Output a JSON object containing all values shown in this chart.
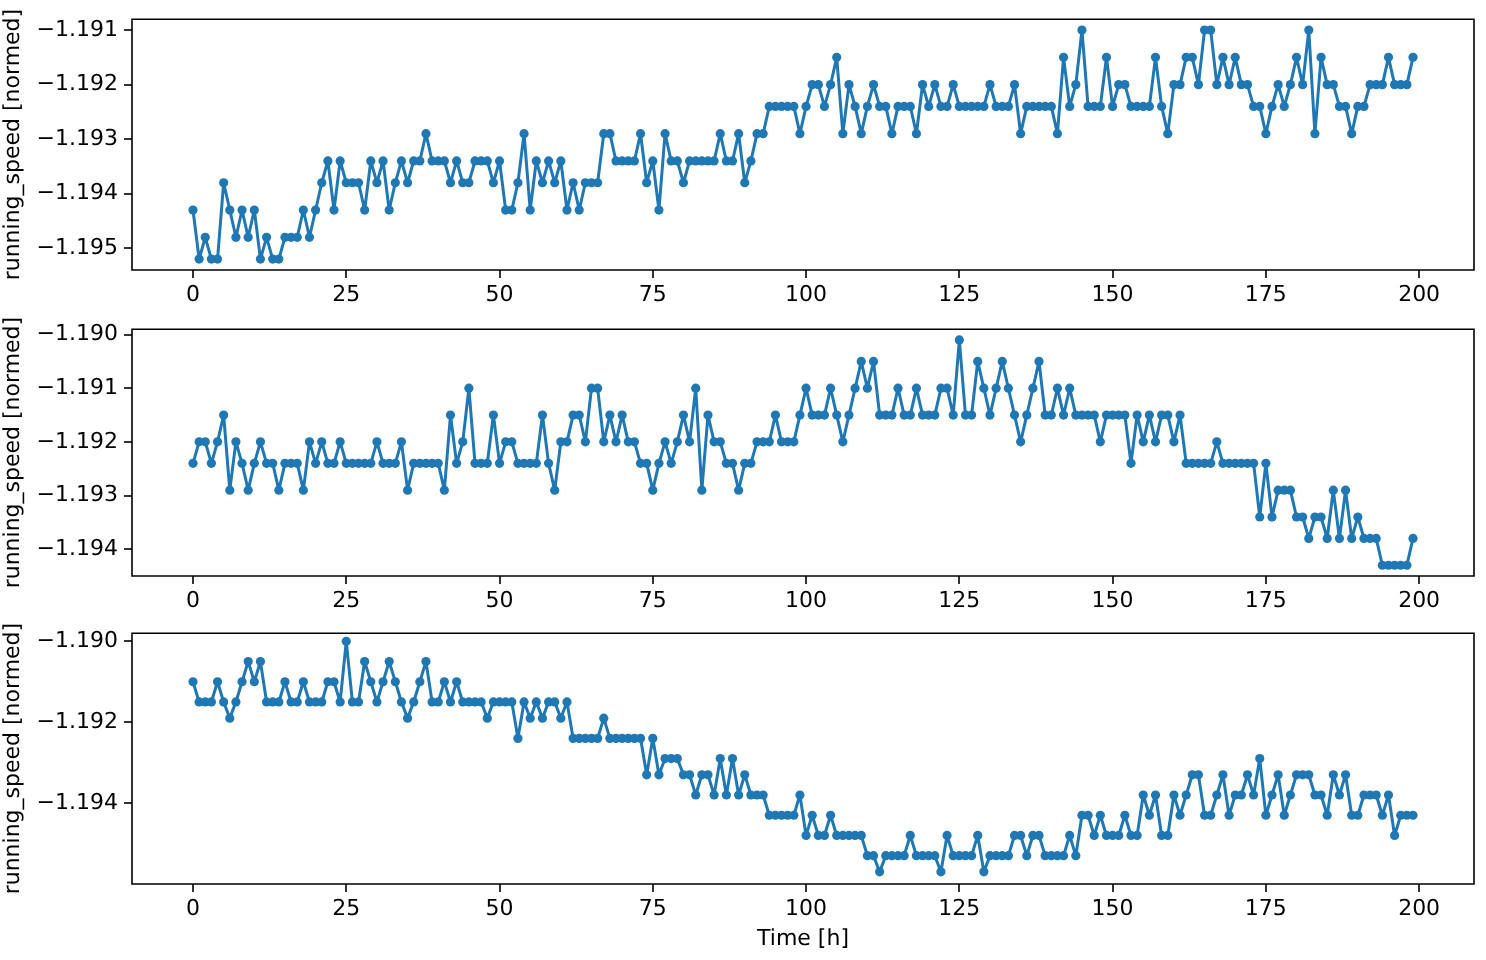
{
  "chart_data": [
    {
      "type": "line",
      "ylabel": "running_speed [normed]",
      "marker": "circle",
      "line_style": "solid",
      "xlim": [
        -9.95,
        208.95
      ],
      "xticks": [
        0,
        25,
        50,
        75,
        100,
        125,
        150,
        175,
        200
      ],
      "ylim": [
        -1.1954,
        -1.1908
      ],
      "yticks": [
        {
          "value": -1.195,
          "label": "−1.195"
        },
        {
          "value": -1.194,
          "label": "−1.194"
        },
        {
          "value": -1.193,
          "label": "−1.193"
        },
        {
          "value": -1.192,
          "label": "−1.192"
        },
        {
          "value": -1.191,
          "label": "−1.191"
        }
      ],
      "x": [
        0,
        1,
        2,
        3,
        4,
        5,
        6,
        7,
        8,
        9,
        10,
        11,
        12,
        13,
        14,
        15,
        16,
        17,
        18,
        19,
        20,
        21,
        22,
        23,
        24,
        25,
        26,
        27,
        28,
        29,
        30,
        31,
        32,
        33,
        34,
        35,
        36,
        37,
        38,
        39,
        40,
        41,
        42,
        43,
        44,
        45,
        46,
        47,
        48,
        49,
        50,
        51,
        52,
        53,
        54,
        55,
        56,
        57,
        58,
        59,
        60,
        61,
        62,
        63,
        64,
        65,
        66,
        67,
        68,
        69,
        70,
        71,
        72,
        73,
        74,
        75,
        76,
        77,
        78,
        79,
        80,
        81,
        82,
        83,
        84,
        85,
        86,
        87,
        88,
        89,
        90,
        91,
        92,
        93,
        94,
        95,
        96,
        97,
        98,
        99,
        100,
        101,
        102,
        103,
        104,
        105,
        106,
        107,
        108,
        109,
        110,
        111,
        112,
        113,
        114,
        115,
        116,
        117,
        118,
        119,
        120,
        121,
        122,
        123,
        124,
        125,
        126,
        127,
        128,
        129,
        130,
        131,
        132,
        133,
        134,
        135,
        136,
        137,
        138,
        139,
        140,
        141,
        142,
        143,
        144,
        145,
        146,
        147,
        148,
        149,
        150,
        151,
        152,
        153,
        154,
        155,
        156,
        157,
        158,
        159,
        160,
        161,
        162,
        163,
        164,
        165,
        166,
        167,
        168,
        169,
        170,
        171,
        172,
        173,
        174,
        175,
        176,
        177,
        178,
        179,
        180,
        181,
        182,
        183,
        184,
        185,
        186,
        187,
        188,
        189,
        190,
        191,
        192,
        193,
        194,
        195,
        196,
        197,
        198,
        199
      ],
      "series": [
        {
          "color": "#1f77b4",
          "values": [
            -1.1943,
            -1.1952,
            -1.1948,
            -1.1952,
            -1.1952,
            -1.1938,
            -1.1943,
            -1.1948,
            -1.1943,
            -1.1948,
            -1.1943,
            -1.1952,
            -1.1948,
            -1.1952,
            -1.1952,
            -1.1948,
            -1.1948,
            -1.1948,
            -1.1943,
            -1.1948,
            -1.1943,
            -1.1938,
            -1.1934,
            -1.1943,
            -1.1934,
            -1.1938,
            -1.1938,
            -1.1938,
            -1.1943,
            -1.1934,
            -1.1938,
            -1.1934,
            -1.1943,
            -1.1938,
            -1.1934,
            -1.1938,
            -1.1934,
            -1.1934,
            -1.1929,
            -1.1934,
            -1.1934,
            -1.1934,
            -1.1938,
            -1.1934,
            -1.1938,
            -1.1938,
            -1.1934,
            -1.1934,
            -1.1934,
            -1.1938,
            -1.1934,
            -1.1943,
            -1.1943,
            -1.1938,
            -1.1929,
            -1.1943,
            -1.1934,
            -1.1938,
            -1.1934,
            -1.1938,
            -1.1934,
            -1.1943,
            -1.1938,
            -1.1943,
            -1.1938,
            -1.1938,
            -1.1938,
            -1.1929,
            -1.1929,
            -1.1934,
            -1.1934,
            -1.1934,
            -1.1934,
            -1.1929,
            -1.1938,
            -1.1934,
            -1.1943,
            -1.1929,
            -1.1934,
            -1.1934,
            -1.1938,
            -1.1934,
            -1.1934,
            -1.1934,
            -1.1934,
            -1.1934,
            -1.1929,
            -1.1934,
            -1.1934,
            -1.1929,
            -1.1938,
            -1.1934,
            -1.1929,
            -1.1929,
            -1.1924,
            -1.1924,
            -1.1924,
            -1.1924,
            -1.1924,
            -1.1929,
            -1.1924,
            -1.192,
            -1.192,
            -1.1924,
            -1.192,
            -1.1915,
            -1.1929,
            -1.192,
            -1.1924,
            -1.1929,
            -1.1924,
            -1.192,
            -1.1924,
            -1.1924,
            -1.1929,
            -1.1924,
            -1.1924,
            -1.1924,
            -1.1929,
            -1.192,
            -1.1924,
            -1.192,
            -1.1924,
            -1.1924,
            -1.192,
            -1.1924,
            -1.1924,
            -1.1924,
            -1.1924,
            -1.1924,
            -1.192,
            -1.1924,
            -1.1924,
            -1.1924,
            -1.192,
            -1.1929,
            -1.1924,
            -1.1924,
            -1.1924,
            -1.1924,
            -1.1924,
            -1.1929,
            -1.1915,
            -1.1924,
            -1.192,
            -1.191,
            -1.1924,
            -1.1924,
            -1.1924,
            -1.1915,
            -1.1924,
            -1.192,
            -1.192,
            -1.1924,
            -1.1924,
            -1.1924,
            -1.1924,
            -1.1915,
            -1.1924,
            -1.1929,
            -1.192,
            -1.192,
            -1.1915,
            -1.1915,
            -1.192,
            -1.191,
            -1.191,
            -1.192,
            -1.1915,
            -1.192,
            -1.1915,
            -1.192,
            -1.192,
            -1.1924,
            -1.1924,
            -1.1929,
            -1.1924,
            -1.192,
            -1.1924,
            -1.192,
            -1.1915,
            -1.192,
            -1.191,
            -1.1929,
            -1.1915,
            -1.192,
            -1.192,
            -1.1924,
            -1.1924,
            -1.1929,
            -1.1924,
            -1.1924,
            -1.192,
            -1.192,
            -1.192,
            -1.1915,
            -1.192,
            -1.192,
            -1.192,
            -1.1915
          ]
        }
      ]
    },
    {
      "type": "line",
      "ylabel": "running_speed [normed]",
      "marker": "circle",
      "line_style": "solid",
      "xlim": [
        -9.95,
        208.95
      ],
      "xticks": [
        0,
        25,
        50,
        75,
        100,
        125,
        150,
        175,
        200
      ],
      "ylim": [
        -1.1945,
        -1.1899
      ],
      "yticks": [
        {
          "value": -1.194,
          "label": "−1.194"
        },
        {
          "value": -1.193,
          "label": "−1.193"
        },
        {
          "value": -1.192,
          "label": "−1.192"
        },
        {
          "value": -1.191,
          "label": "−1.191"
        },
        {
          "value": -1.19,
          "label": "−1.190"
        }
      ],
      "x": [
        0,
        1,
        2,
        3,
        4,
        5,
        6,
        7,
        8,
        9,
        10,
        11,
        12,
        13,
        14,
        15,
        16,
        17,
        18,
        19,
        20,
        21,
        22,
        23,
        24,
        25,
        26,
        27,
        28,
        29,
        30,
        31,
        32,
        33,
        34,
        35,
        36,
        37,
        38,
        39,
        40,
        41,
        42,
        43,
        44,
        45,
        46,
        47,
        48,
        49,
        50,
        51,
        52,
        53,
        54,
        55,
        56,
        57,
        58,
        59,
        60,
        61,
        62,
        63,
        64,
        65,
        66,
        67,
        68,
        69,
        70,
        71,
        72,
        73,
        74,
        75,
        76,
        77,
        78,
        79,
        80,
        81,
        82,
        83,
        84,
        85,
        86,
        87,
        88,
        89,
        90,
        91,
        92,
        93,
        94,
        95,
        96,
        97,
        98,
        99,
        100,
        101,
        102,
        103,
        104,
        105,
        106,
        107,
        108,
        109,
        110,
        111,
        112,
        113,
        114,
        115,
        116,
        117,
        118,
        119,
        120,
        121,
        122,
        123,
        124,
        125,
        126,
        127,
        128,
        129,
        130,
        131,
        132,
        133,
        134,
        135,
        136,
        137,
        138,
        139,
        140,
        141,
        142,
        143,
        144,
        145,
        146,
        147,
        148,
        149,
        150,
        151,
        152,
        153,
        154,
        155,
        156,
        157,
        158,
        159,
        160,
        161,
        162,
        163,
        164,
        165,
        166,
        167,
        168,
        169,
        170,
        171,
        172,
        173,
        174,
        175,
        176,
        177,
        178,
        179,
        180,
        181,
        182,
        183,
        184,
        185,
        186,
        187,
        188,
        189,
        190,
        191,
        192,
        193,
        194,
        195,
        196,
        197,
        198,
        199
      ],
      "series": [
        {
          "color": "#1f77b4",
          "values": [
            -1.1924,
            -1.192,
            -1.192,
            -1.1924,
            -1.192,
            -1.1915,
            -1.1929,
            -1.192,
            -1.1924,
            -1.1929,
            -1.1924,
            -1.192,
            -1.1924,
            -1.1924,
            -1.1929,
            -1.1924,
            -1.1924,
            -1.1924,
            -1.1929,
            -1.192,
            -1.1924,
            -1.192,
            -1.1924,
            -1.1924,
            -1.192,
            -1.1924,
            -1.1924,
            -1.1924,
            -1.1924,
            -1.1924,
            -1.192,
            -1.1924,
            -1.1924,
            -1.1924,
            -1.192,
            -1.1929,
            -1.1924,
            -1.1924,
            -1.1924,
            -1.1924,
            -1.1924,
            -1.1929,
            -1.1915,
            -1.1924,
            -1.192,
            -1.191,
            -1.1924,
            -1.1924,
            -1.1924,
            -1.1915,
            -1.1924,
            -1.192,
            -1.192,
            -1.1924,
            -1.1924,
            -1.1924,
            -1.1924,
            -1.1915,
            -1.1924,
            -1.1929,
            -1.192,
            -1.192,
            -1.1915,
            -1.1915,
            -1.192,
            -1.191,
            -1.191,
            -1.192,
            -1.1915,
            -1.192,
            -1.1915,
            -1.192,
            -1.192,
            -1.1924,
            -1.1924,
            -1.1929,
            -1.1924,
            -1.192,
            -1.1924,
            -1.192,
            -1.1915,
            -1.192,
            -1.191,
            -1.1929,
            -1.1915,
            -1.192,
            -1.192,
            -1.1924,
            -1.1924,
            -1.1929,
            -1.1924,
            -1.1924,
            -1.192,
            -1.192,
            -1.192,
            -1.1915,
            -1.192,
            -1.192,
            -1.192,
            -1.1915,
            -1.191,
            -1.1915,
            -1.1915,
            -1.1915,
            -1.191,
            -1.1915,
            -1.192,
            -1.1915,
            -1.191,
            -1.1905,
            -1.191,
            -1.1905,
            -1.1915,
            -1.1915,
            -1.1915,
            -1.191,
            -1.1915,
            -1.1915,
            -1.191,
            -1.1915,
            -1.1915,
            -1.1915,
            -1.191,
            -1.191,
            -1.1915,
            -1.1901,
            -1.1915,
            -1.1915,
            -1.1905,
            -1.191,
            -1.1915,
            -1.191,
            -1.1905,
            -1.191,
            -1.1915,
            -1.192,
            -1.1915,
            -1.191,
            -1.1905,
            -1.1915,
            -1.1915,
            -1.191,
            -1.1915,
            -1.191,
            -1.1915,
            -1.1915,
            -1.1915,
            -1.1915,
            -1.192,
            -1.1915,
            -1.1915,
            -1.1915,
            -1.1915,
            -1.1924,
            -1.1915,
            -1.192,
            -1.1915,
            -1.192,
            -1.1915,
            -1.1915,
            -1.192,
            -1.1915,
            -1.1924,
            -1.1924,
            -1.1924,
            -1.1924,
            -1.1924,
            -1.192,
            -1.1924,
            -1.1924,
            -1.1924,
            -1.1924,
            -1.1924,
            -1.1924,
            -1.1934,
            -1.1924,
            -1.1934,
            -1.1929,
            -1.1929,
            -1.1929,
            -1.1934,
            -1.1934,
            -1.1938,
            -1.1934,
            -1.1934,
            -1.1938,
            -1.1929,
            -1.1938,
            -1.1929,
            -1.1938,
            -1.1934,
            -1.1938,
            -1.1938,
            -1.1938,
            -1.1943,
            -1.1943,
            -1.1943,
            -1.1943,
            -1.1943,
            -1.1938
          ]
        }
      ]
    },
    {
      "type": "line",
      "xlabel": "Time [h]",
      "ylabel": "running_speed [normed]",
      "marker": "circle",
      "line_style": "solid",
      "xlim": [
        -9.95,
        208.95
      ],
      "xticks": [
        0,
        25,
        50,
        75,
        100,
        125,
        150,
        175,
        200
      ],
      "ylim": [
        -1.196,
        -1.1898
      ],
      "yticks": [
        {
          "value": -1.194,
          "label": "−1.194"
        },
        {
          "value": -1.192,
          "label": "−1.192"
        },
        {
          "value": -1.19,
          "label": "−1.190"
        }
      ],
      "x": [
        0,
        1,
        2,
        3,
        4,
        5,
        6,
        7,
        8,
        9,
        10,
        11,
        12,
        13,
        14,
        15,
        16,
        17,
        18,
        19,
        20,
        21,
        22,
        23,
        24,
        25,
        26,
        27,
        28,
        29,
        30,
        31,
        32,
        33,
        34,
        35,
        36,
        37,
        38,
        39,
        40,
        41,
        42,
        43,
        44,
        45,
        46,
        47,
        48,
        49,
        50,
        51,
        52,
        53,
        54,
        55,
        56,
        57,
        58,
        59,
        60,
        61,
        62,
        63,
        64,
        65,
        66,
        67,
        68,
        69,
        70,
        71,
        72,
        73,
        74,
        75,
        76,
        77,
        78,
        79,
        80,
        81,
        82,
        83,
        84,
        85,
        86,
        87,
        88,
        89,
        90,
        91,
        92,
        93,
        94,
        95,
        96,
        97,
        98,
        99,
        100,
        101,
        102,
        103,
        104,
        105,
        106,
        107,
        108,
        109,
        110,
        111,
        112,
        113,
        114,
        115,
        116,
        117,
        118,
        119,
        120,
        121,
        122,
        123,
        124,
        125,
        126,
        127,
        128,
        129,
        130,
        131,
        132,
        133,
        134,
        135,
        136,
        137,
        138,
        139,
        140,
        141,
        142,
        143,
        144,
        145,
        146,
        147,
        148,
        149,
        150,
        151,
        152,
        153,
        154,
        155,
        156,
        157,
        158,
        159,
        160,
        161,
        162,
        163,
        164,
        165,
        166,
        167,
        168,
        169,
        170,
        171,
        172,
        173,
        174,
        175,
        176,
        177,
        178,
        179,
        180,
        181,
        182,
        183,
        184,
        185,
        186,
        187,
        188,
        189,
        190,
        191,
        192,
        193,
        194,
        195,
        196,
        197,
        198,
        199
      ],
      "series": [
        {
          "color": "#1f77b4",
          "values": [
            -1.191,
            -1.1915,
            -1.1915,
            -1.1915,
            -1.191,
            -1.1915,
            -1.1919,
            -1.1915,
            -1.191,
            -1.1905,
            -1.191,
            -1.1905,
            -1.1915,
            -1.1915,
            -1.1915,
            -1.191,
            -1.1915,
            -1.1915,
            -1.191,
            -1.1915,
            -1.1915,
            -1.1915,
            -1.191,
            -1.191,
            -1.1915,
            -1.19,
            -1.1915,
            -1.1915,
            -1.1905,
            -1.191,
            -1.1915,
            -1.191,
            -1.1905,
            -1.191,
            -1.1915,
            -1.1919,
            -1.1915,
            -1.191,
            -1.1905,
            -1.1915,
            -1.1915,
            -1.191,
            -1.1915,
            -1.191,
            -1.1915,
            -1.1915,
            -1.1915,
            -1.1915,
            -1.1919,
            -1.1915,
            -1.1915,
            -1.1915,
            -1.1915,
            -1.1924,
            -1.1915,
            -1.1919,
            -1.1915,
            -1.1919,
            -1.1915,
            -1.1915,
            -1.1919,
            -1.1915,
            -1.1924,
            -1.1924,
            -1.1924,
            -1.1924,
            -1.1924,
            -1.1919,
            -1.1924,
            -1.1924,
            -1.1924,
            -1.1924,
            -1.1924,
            -1.1924,
            -1.1933,
            -1.1924,
            -1.1933,
            -1.1929,
            -1.1929,
            -1.1929,
            -1.1933,
            -1.1933,
            -1.1938,
            -1.1933,
            -1.1933,
            -1.1938,
            -1.1929,
            -1.1938,
            -1.1929,
            -1.1938,
            -1.1933,
            -1.1938,
            -1.1938,
            -1.1938,
            -1.1943,
            -1.1943,
            -1.1943,
            -1.1943,
            -1.1943,
            -1.1938,
            -1.1948,
            -1.1943,
            -1.1948,
            -1.1948,
            -1.1943,
            -1.1948,
            -1.1948,
            -1.1948,
            -1.1948,
            -1.1948,
            -1.1953,
            -1.1953,
            -1.1957,
            -1.1953,
            -1.1953,
            -1.1953,
            -1.1953,
            -1.1948,
            -1.1953,
            -1.1953,
            -1.1953,
            -1.1953,
            -1.1957,
            -1.1948,
            -1.1953,
            -1.1953,
            -1.1953,
            -1.1953,
            -1.1948,
            -1.1957,
            -1.1953,
            -1.1953,
            -1.1953,
            -1.1953,
            -1.1948,
            -1.1948,
            -1.1953,
            -1.1948,
            -1.1948,
            -1.1953,
            -1.1953,
            -1.1953,
            -1.1953,
            -1.1948,
            -1.1953,
            -1.1943,
            -1.1943,
            -1.1948,
            -1.1943,
            -1.1948,
            -1.1948,
            -1.1948,
            -1.1943,
            -1.1948,
            -1.1948,
            -1.1938,
            -1.1943,
            -1.1938,
            -1.1948,
            -1.1948,
            -1.1938,
            -1.1943,
            -1.1938,
            -1.1933,
            -1.1933,
            -1.1943,
            -1.1943,
            -1.1938,
            -1.1933,
            -1.1943,
            -1.1938,
            -1.1938,
            -1.1933,
            -1.1938,
            -1.1929,
            -1.1943,
            -1.1938,
            -1.1933,
            -1.1943,
            -1.1938,
            -1.1933,
            -1.1933,
            -1.1933,
            -1.1938,
            -1.1938,
            -1.1943,
            -1.1933,
            -1.1938,
            -1.1933,
            -1.1943,
            -1.1943,
            -1.1938,
            -1.1938,
            -1.1938,
            -1.1943,
            -1.1938,
            -1.1948,
            -1.1943,
            -1.1943,
            -1.1943
          ]
        }
      ]
    }
  ]
}
